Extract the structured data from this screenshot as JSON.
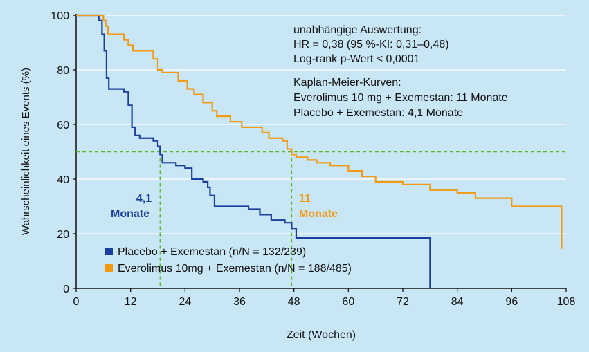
{
  "chart_data": {
    "type": "line",
    "title": "",
    "xlabel": "Zeit (Wochen)",
    "ylabel": "Wahrscheinlichkeit eines Events (%)",
    "xlim": [
      0,
      108
    ],
    "ylim": [
      0,
      100
    ],
    "x_ticks": [
      0,
      12,
      24,
      36,
      48,
      60,
      72,
      84,
      96,
      108
    ],
    "y_ticks": [
      0,
      20,
      40,
      60,
      80,
      100
    ],
    "grid": "horizontal",
    "reference_line_y": 50,
    "median_lines_x": [
      18.5,
      47.5
    ],
    "series": [
      {
        "name": "Placebo + Exemestan (n/N = 132/239)",
        "color": "#1b3f9c",
        "steps": [
          [
            0,
            100
          ],
          [
            4,
            100
          ],
          [
            5,
            98
          ],
          [
            5.7,
            93
          ],
          [
            6.2,
            87
          ],
          [
            6.7,
            77
          ],
          [
            7.2,
            73
          ],
          [
            10.5,
            72
          ],
          [
            11.5,
            67
          ],
          [
            12.3,
            59
          ],
          [
            13,
            56
          ],
          [
            14,
            55
          ],
          [
            17,
            54
          ],
          [
            18,
            52
          ],
          [
            18.5,
            49
          ],
          [
            19,
            46
          ],
          [
            22,
            45
          ],
          [
            24,
            44
          ],
          [
            25.5,
            40
          ],
          [
            28,
            39
          ],
          [
            29,
            37
          ],
          [
            29.5,
            34
          ],
          [
            30.5,
            30
          ],
          [
            38,
            29
          ],
          [
            40.5,
            27
          ],
          [
            43,
            25
          ],
          [
            46,
            24
          ],
          [
            47.5,
            22
          ],
          [
            48.5,
            18.5
          ],
          [
            78,
            18.5
          ],
          [
            78,
            0
          ]
        ]
      },
      {
        "name": "Everolimus 10mg + Exemestan (n/N = 188/485)",
        "color": "#f29a12",
        "steps": [
          [
            0,
            100
          ],
          [
            5.5,
            100
          ],
          [
            6,
            98
          ],
          [
            6.5,
            96
          ],
          [
            7,
            93
          ],
          [
            10.5,
            91
          ],
          [
            11.5,
            89
          ],
          [
            12.5,
            87
          ],
          [
            17,
            84
          ],
          [
            18,
            80
          ],
          [
            19,
            79
          ],
          [
            22.5,
            76
          ],
          [
            24.5,
            73
          ],
          [
            26,
            71
          ],
          [
            28,
            68
          ],
          [
            30,
            65
          ],
          [
            31,
            63
          ],
          [
            34,
            61
          ],
          [
            36.5,
            59
          ],
          [
            41,
            57
          ],
          [
            42.5,
            55
          ],
          [
            45.5,
            54
          ],
          [
            46.5,
            51
          ],
          [
            47.5,
            49
          ],
          [
            48.5,
            48
          ],
          [
            51,
            47
          ],
          [
            53,
            46
          ],
          [
            56,
            45
          ],
          [
            60,
            43
          ],
          [
            63,
            41
          ],
          [
            66,
            39
          ],
          [
            72,
            38
          ],
          [
            78,
            36
          ],
          [
            84,
            35
          ],
          [
            88,
            33
          ],
          [
            96,
            30
          ],
          [
            107,
            30
          ],
          [
            107,
            14.5
          ]
        ]
      }
    ],
    "annotations": {
      "placebo_median_value": "4,1",
      "placebo_median_unit": "Monate",
      "everolimus_median_value": "11",
      "everolimus_median_unit": "Monate",
      "stats_lines": [
        "unabhängige Auswertung:",
        "HR = 0,38 (95 %-KI: 0,31–0,48)",
        "Log-rank p-Wert < 0,0001",
        "Kaplan-Meier-Kurven:",
        "Everolimus 10 mg + Exemestan: 11 Monate",
        "Placebo + Exemestan: 4,1 Monate"
      ]
    }
  }
}
